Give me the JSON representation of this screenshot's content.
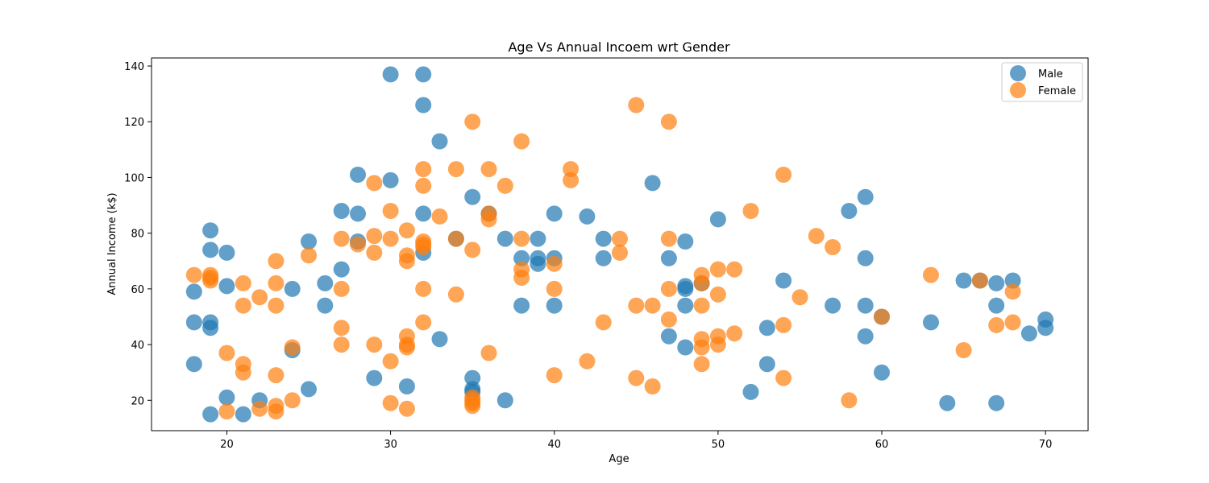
{
  "chart_data": {
    "type": "scatter",
    "title": "Age Vs Annual Incoem wrt Gender",
    "xlabel": "Age",
    "ylabel": "Annual Income (k$)",
    "xlim": [
      15.4,
      72.6
    ],
    "ylim": [
      9.1,
      142.9
    ],
    "xticks": [
      20,
      30,
      40,
      50,
      60,
      70
    ],
    "yticks": [
      20,
      40,
      60,
      80,
      100,
      120,
      140
    ],
    "grid": false,
    "legend_position": "top-right",
    "series": [
      {
        "name": "Male",
        "color": "#1f77b4",
        "points": [
          [
            18,
            33
          ],
          [
            18,
            48
          ],
          [
            18,
            59
          ],
          [
            19,
            15
          ],
          [
            19,
            46
          ],
          [
            19,
            48
          ],
          [
            19,
            74
          ],
          [
            19,
            81
          ],
          [
            20,
            21
          ],
          [
            20,
            61
          ],
          [
            20,
            73
          ],
          [
            21,
            15
          ],
          [
            22,
            20
          ],
          [
            24,
            38
          ],
          [
            24,
            60
          ],
          [
            25,
            24
          ],
          [
            25,
            77
          ],
          [
            26,
            54
          ],
          [
            26,
            62
          ],
          [
            27,
            67
          ],
          [
            27,
            88
          ],
          [
            28,
            77
          ],
          [
            28,
            87
          ],
          [
            28,
            101
          ],
          [
            29,
            28
          ],
          [
            30,
            99
          ],
          [
            30,
            137
          ],
          [
            31,
            25
          ],
          [
            32,
            73
          ],
          [
            32,
            87
          ],
          [
            32,
            126
          ],
          [
            32,
            137
          ],
          [
            33,
            42
          ],
          [
            33,
            113
          ],
          [
            34,
            78
          ],
          [
            35,
            23
          ],
          [
            35,
            24
          ],
          [
            35,
            28
          ],
          [
            35,
            93
          ],
          [
            36,
            87
          ],
          [
            37,
            20
          ],
          [
            37,
            78
          ],
          [
            38,
            54
          ],
          [
            38,
            71
          ],
          [
            39,
            69
          ],
          [
            39,
            71
          ],
          [
            39,
            78
          ],
          [
            40,
            54
          ],
          [
            40,
            71
          ],
          [
            40,
            87
          ],
          [
            42,
            86
          ],
          [
            43,
            71
          ],
          [
            43,
            78
          ],
          [
            46,
            98
          ],
          [
            47,
            43
          ],
          [
            47,
            71
          ],
          [
            48,
            39
          ],
          [
            48,
            54
          ],
          [
            48,
            60
          ],
          [
            48,
            61
          ],
          [
            48,
            77
          ],
          [
            49,
            62
          ],
          [
            50,
            85
          ],
          [
            52,
            23
          ],
          [
            53,
            33
          ],
          [
            53,
            46
          ],
          [
            54,
            63
          ],
          [
            57,
            54
          ],
          [
            58,
            88
          ],
          [
            59,
            43
          ],
          [
            59,
            54
          ],
          [
            59,
            71
          ],
          [
            59,
            93
          ],
          [
            60,
            30
          ],
          [
            60,
            50
          ],
          [
            63,
            48
          ],
          [
            64,
            19
          ],
          [
            65,
            63
          ],
          [
            66,
            63
          ],
          [
            67,
            19
          ],
          [
            67,
            54
          ],
          [
            67,
            62
          ],
          [
            68,
            63
          ],
          [
            69,
            44
          ],
          [
            70,
            46
          ],
          [
            70,
            49
          ]
        ]
      },
      {
        "name": "Female",
        "color": "#ff7f0e",
        "points": [
          [
            18,
            65
          ],
          [
            19,
            63
          ],
          [
            19,
            64
          ],
          [
            19,
            65
          ],
          [
            20,
            16
          ],
          [
            20,
            37
          ],
          [
            21,
            30
          ],
          [
            21,
            33
          ],
          [
            21,
            54
          ],
          [
            21,
            62
          ],
          [
            22,
            17
          ],
          [
            22,
            57
          ],
          [
            23,
            16
          ],
          [
            23,
            18
          ],
          [
            23,
            29
          ],
          [
            23,
            54
          ],
          [
            23,
            62
          ],
          [
            23,
            70
          ],
          [
            24,
            20
          ],
          [
            24,
            39
          ],
          [
            25,
            72
          ],
          [
            27,
            40
          ],
          [
            27,
            46
          ],
          [
            27,
            60
          ],
          [
            27,
            78
          ],
          [
            28,
            76
          ],
          [
            29,
            40
          ],
          [
            29,
            73
          ],
          [
            29,
            79
          ],
          [
            29,
            98
          ],
          [
            30,
            19
          ],
          [
            30,
            34
          ],
          [
            30,
            78
          ],
          [
            30,
            88
          ],
          [
            31,
            17
          ],
          [
            31,
            39
          ],
          [
            31,
            40
          ],
          [
            31,
            43
          ],
          [
            31,
            70
          ],
          [
            31,
            72
          ],
          [
            31,
            81
          ],
          [
            32,
            48
          ],
          [
            32,
            60
          ],
          [
            32,
            75
          ],
          [
            32,
            76
          ],
          [
            32,
            77
          ],
          [
            32,
            97
          ],
          [
            32,
            103
          ],
          [
            33,
            86
          ],
          [
            34,
            58
          ],
          [
            34,
            78
          ],
          [
            34,
            103
          ],
          [
            35,
            18
          ],
          [
            35,
            19
          ],
          [
            35,
            20
          ],
          [
            35,
            21
          ],
          [
            35,
            74
          ],
          [
            35,
            120
          ],
          [
            36,
            37
          ],
          [
            36,
            85
          ],
          [
            36,
            87
          ],
          [
            36,
            103
          ],
          [
            37,
            97
          ],
          [
            38,
            64
          ],
          [
            38,
            67
          ],
          [
            38,
            78
          ],
          [
            38,
            113
          ],
          [
            40,
            29
          ],
          [
            40,
            60
          ],
          [
            40,
            69
          ],
          [
            41,
            99
          ],
          [
            41,
            103
          ],
          [
            42,
            34
          ],
          [
            43,
            48
          ],
          [
            44,
            73
          ],
          [
            44,
            78
          ],
          [
            45,
            28
          ],
          [
            45,
            54
          ],
          [
            45,
            126
          ],
          [
            46,
            25
          ],
          [
            46,
            54
          ],
          [
            47,
            49
          ],
          [
            47,
            60
          ],
          [
            47,
            78
          ],
          [
            47,
            120
          ],
          [
            49,
            33
          ],
          [
            49,
            39
          ],
          [
            49,
            42
          ],
          [
            49,
            54
          ],
          [
            49,
            62
          ],
          [
            49,
            65
          ],
          [
            50,
            40
          ],
          [
            50,
            43
          ],
          [
            50,
            58
          ],
          [
            50,
            67
          ],
          [
            51,
            44
          ],
          [
            51,
            67
          ],
          [
            52,
            88
          ],
          [
            54,
            28
          ],
          [
            54,
            47
          ],
          [
            54,
            101
          ],
          [
            55,
            57
          ],
          [
            56,
            79
          ],
          [
            57,
            75
          ],
          [
            58,
            20
          ],
          [
            60,
            50
          ],
          [
            63,
            65
          ],
          [
            65,
            38
          ],
          [
            66,
            63
          ],
          [
            67,
            47
          ],
          [
            68,
            48
          ],
          [
            68,
            59
          ]
        ]
      }
    ]
  }
}
